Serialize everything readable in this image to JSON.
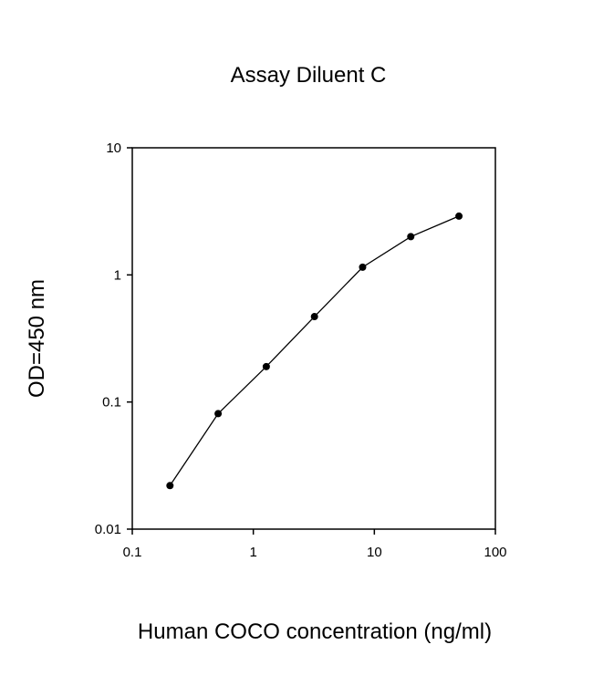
{
  "chart_data": {
    "type": "line",
    "title": "Assay Diluent C",
    "xlabel": "Human COCO concentration (ng/ml)",
    "ylabel": "OD=450 nm",
    "x": [
      0.2048,
      0.512,
      1.28,
      3.2,
      8,
      20,
      50
    ],
    "series": [
      {
        "color": "#000000",
        "values": [
          0.022,
          0.081,
          0.19,
          0.47,
          1.15,
          2.0,
          2.9
        ]
      }
    ],
    "xscale": "log",
    "yscale": "log",
    "xlim": [
      0.1,
      100
    ],
    "ylim": [
      0.01,
      10
    ],
    "xticks": [
      0.1,
      1,
      10,
      100
    ],
    "yticks": [
      0.01,
      0.1,
      1,
      10
    ]
  }
}
